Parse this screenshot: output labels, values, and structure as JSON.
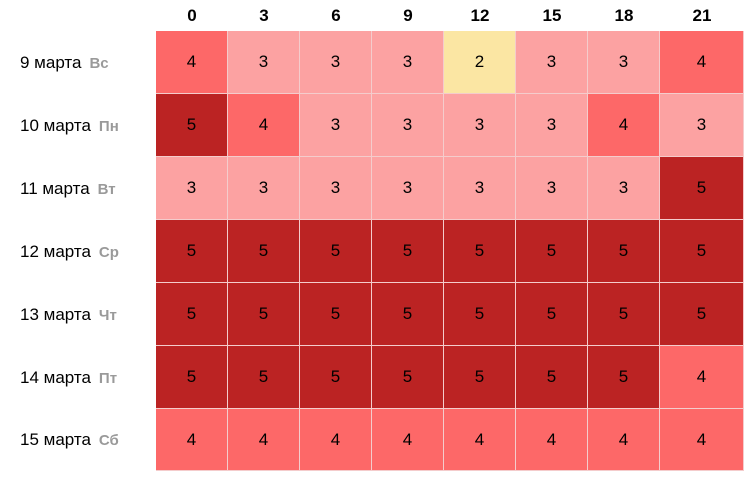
{
  "chart_data": {
    "type": "heatmap",
    "columns": [
      "0",
      "3",
      "6",
      "9",
      "12",
      "15",
      "18",
      "21"
    ],
    "rows": [
      {
        "date": "9 марта",
        "dow": "Вс",
        "values": [
          4,
          3,
          3,
          3,
          2,
          3,
          3,
          4
        ]
      },
      {
        "date": "10 марта",
        "dow": "Пн",
        "values": [
          5,
          4,
          3,
          3,
          3,
          3,
          4,
          3
        ]
      },
      {
        "date": "11 марта",
        "dow": "Вт",
        "values": [
          3,
          3,
          3,
          3,
          3,
          3,
          3,
          5
        ]
      },
      {
        "date": "12 марта",
        "dow": "Ср",
        "values": [
          5,
          5,
          5,
          5,
          5,
          5,
          5,
          5
        ]
      },
      {
        "date": "13 марта",
        "dow": "Чт",
        "values": [
          5,
          5,
          5,
          5,
          5,
          5,
          5,
          5
        ]
      },
      {
        "date": "14 марта",
        "dow": "Пт",
        "values": [
          5,
          5,
          5,
          5,
          5,
          5,
          5,
          4
        ]
      },
      {
        "date": "15 марта",
        "dow": "Сб",
        "values": [
          4,
          4,
          4,
          4,
          4,
          4,
          4,
          4
        ]
      }
    ],
    "color_scale": {
      "2": "#fbe6a3",
      "3": "#fca2a2",
      "4": "#fd6868",
      "5": "#bb2323"
    },
    "legend": "none"
  }
}
